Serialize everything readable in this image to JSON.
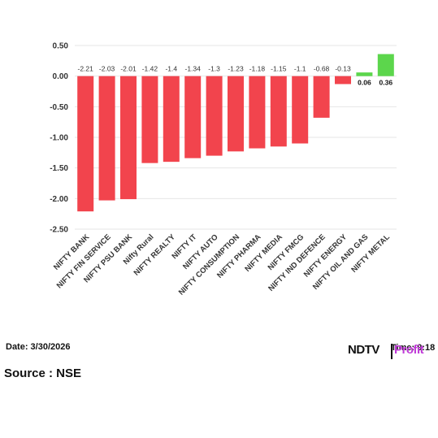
{
  "chart_data": {
    "type": "bar",
    "categories": [
      "NIFTY BANK",
      "NIFTY FIN SERVICE",
      "NIFTY PSU BANK",
      "Nifty Rural",
      "NIFTY REALTY",
      "NIFTY IT",
      "NIFTY AUTO",
      "NIFTY CONSUMPTION",
      "NIFTY PHARMA",
      "NIFTY MEDIA",
      "NIFTY FMCG",
      "NIFTY IND DEFENCE",
      "NIFTY ENERGY",
      "NIFTY OIL AND GAS",
      "NIFTY METAL"
    ],
    "values": [
      -2.21,
      -2.03,
      -2.01,
      -1.42,
      -1.4,
      -1.34,
      -1.3,
      -1.23,
      -1.18,
      -1.15,
      -1.1,
      -0.68,
      -0.13,
      0.06,
      0.36
    ],
    "value_labels": [
      "-2.21",
      "-2.03",
      "-2.01",
      "-1.42",
      "-1.4",
      "-1.34",
      "-1.3",
      "-1.23",
      "-1.18",
      "-1.15",
      "-1.1",
      "-0.68",
      "-0.13",
      "0.06",
      "0.36"
    ],
    "ylim": [
      -2.5,
      0.5
    ],
    "yticks": [
      "0.50",
      "0.00",
      "-0.50",
      "-1.00",
      "-1.50",
      "-2.00",
      "-2.50"
    ],
    "ytick_values": [
      0.5,
      0,
      -0.5,
      -1,
      -1.5,
      -2,
      -2.5
    ],
    "title": "",
    "xlabel": "",
    "ylabel": "",
    "grid": true,
    "colors": {
      "negative": "#f2444d",
      "positive": "#5cd64c",
      "grid": "#e6e6e6"
    }
  },
  "footer": {
    "date": "Date: 3/30/2026",
    "source": "Source : NSE",
    "brand_name": "NDTV",
    "brand_suffix": "Profit",
    "time": "Time: 9:18"
  }
}
